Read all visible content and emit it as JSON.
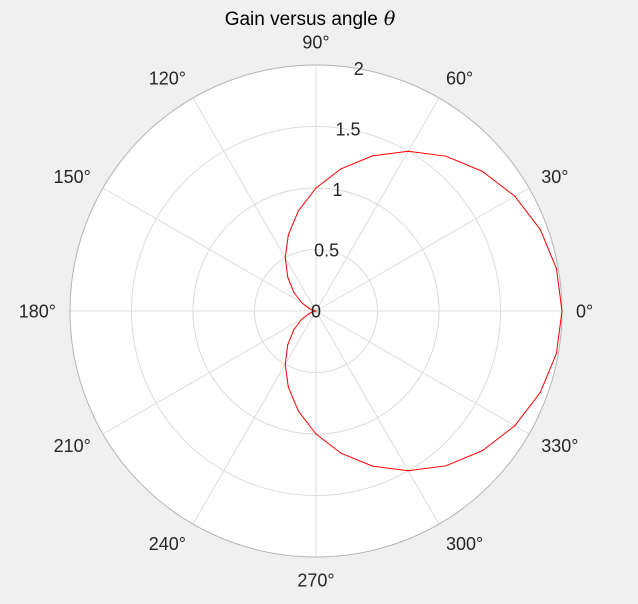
{
  "chart_data": {
    "type": "line",
    "coordinate_system": "polar",
    "title": "Gain versus angle",
    "title_symbol": "θ",
    "theta_unit": "degrees",
    "theta_ticks": [
      0,
      30,
      60,
      90,
      120,
      150,
      180,
      210,
      240,
      270,
      300,
      330
    ],
    "theta_tick_labels": [
      "0°",
      "30°",
      "60°",
      "90°",
      "120°",
      "150°",
      "180°",
      "210°",
      "240°",
      "270°",
      "300°",
      "330°"
    ],
    "rlim": [
      0,
      2
    ],
    "r_ticks": [
      0,
      0.5,
      1,
      1.5,
      2
    ],
    "r_tick_labels": [
      "0",
      "0.5",
      "1",
      "1.5",
      "2"
    ],
    "grid": true,
    "series": [
      {
        "color": "#ff0000",
        "theta": [
          0,
          10,
          20,
          30,
          40,
          50,
          60,
          70,
          80,
          90,
          100,
          110,
          120,
          130,
          140,
          150,
          160,
          170,
          180,
          190,
          200,
          210,
          220,
          230,
          240,
          250,
          260,
          270,
          280,
          290,
          300,
          310,
          320,
          330,
          340,
          350,
          360
        ],
        "r": [
          2.0,
          1.985,
          1.94,
          1.866,
          1.766,
          1.643,
          1.5,
          1.342,
          1.174,
          1.0,
          0.826,
          0.658,
          0.5,
          0.357,
          0.234,
          0.134,
          0.06,
          0.015,
          0.0,
          0.015,
          0.06,
          0.134,
          0.234,
          0.357,
          0.5,
          0.658,
          0.826,
          1.0,
          1.174,
          1.342,
          1.5,
          1.643,
          1.766,
          1.866,
          1.94,
          1.985,
          2.0
        ]
      }
    ]
  },
  "colors": {
    "background": "#f0f0f0",
    "plot_area": "#ffffff",
    "grid": "#dcdcdc",
    "outer_ring": "#b4b4b4",
    "text": "#262626",
    "series": "#ff0000"
  }
}
